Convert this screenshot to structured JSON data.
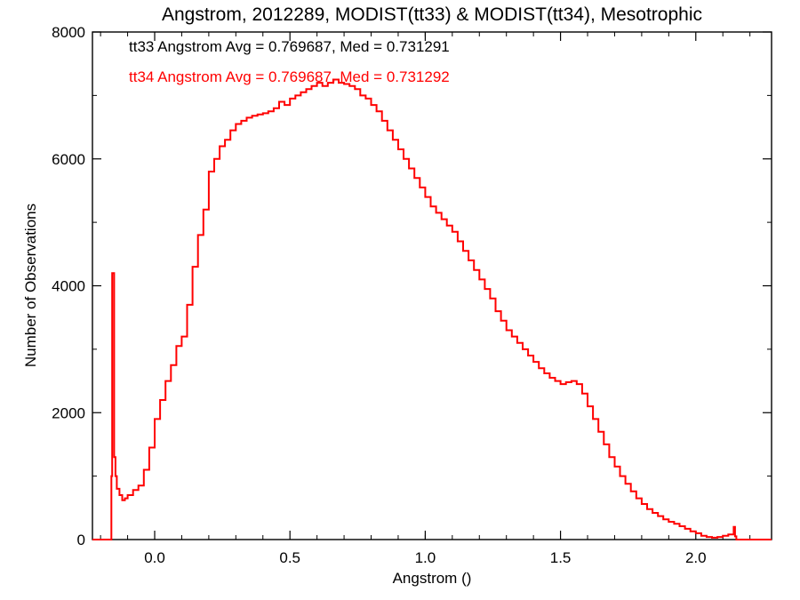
{
  "chart_data": {
    "type": "line",
    "title": "Angstrom, 2012289, MODIST(tt33) & MODIST(tt34), Mesotrophic",
    "xlabel": "Angstrom ()",
    "ylabel": "Number of Observations",
    "xlim": [
      -0.23,
      2.28
    ],
    "ylim": [
      0,
      8000
    ],
    "xticks": [
      0.0,
      0.5,
      1.0,
      1.5,
      2.0
    ],
    "xtick_labels": [
      "0.0",
      "0.5",
      "1.0",
      "1.5",
      "2.0"
    ],
    "yticks": [
      0,
      2000,
      4000,
      6000,
      8000
    ],
    "ytick_labels": [
      "0",
      "2000",
      "4000",
      "6000",
      "8000"
    ],
    "grid": false,
    "step": true,
    "annotations": [
      {
        "text": "tt33 Angstrom Avg = 0.769687, Med = 0.731291",
        "color": "#000000"
      },
      {
        "text": "tt34 Angstrom Avg = 0.769687, Med = 0.731292",
        "color": "#ff0000"
      }
    ],
    "series": [
      {
        "color": "#ff0000",
        "x": [
          -0.23,
          -0.16,
          -0.157,
          -0.15,
          -0.145,
          -0.14,
          -0.13,
          -0.12,
          -0.11,
          -0.1,
          -0.08,
          -0.06,
          -0.04,
          -0.02,
          0.0,
          0.02,
          0.04,
          0.06,
          0.08,
          0.1,
          0.12,
          0.14,
          0.16,
          0.18,
          0.2,
          0.22,
          0.24,
          0.26,
          0.28,
          0.3,
          0.32,
          0.34,
          0.36,
          0.38,
          0.4,
          0.42,
          0.44,
          0.46,
          0.48,
          0.5,
          0.52,
          0.54,
          0.56,
          0.58,
          0.6,
          0.62,
          0.64,
          0.66,
          0.68,
          0.7,
          0.72,
          0.74,
          0.76,
          0.78,
          0.8,
          0.82,
          0.84,
          0.86,
          0.88,
          0.9,
          0.92,
          0.94,
          0.96,
          0.98,
          1.0,
          1.02,
          1.04,
          1.06,
          1.08,
          1.1,
          1.12,
          1.14,
          1.16,
          1.18,
          1.2,
          1.22,
          1.24,
          1.26,
          1.28,
          1.3,
          1.32,
          1.34,
          1.36,
          1.38,
          1.4,
          1.42,
          1.44,
          1.46,
          1.48,
          1.5,
          1.52,
          1.54,
          1.56,
          1.58,
          1.6,
          1.62,
          1.64,
          1.66,
          1.68,
          1.7,
          1.72,
          1.74,
          1.76,
          1.78,
          1.8,
          1.82,
          1.84,
          1.86,
          1.88,
          1.9,
          1.92,
          1.94,
          1.96,
          1.98,
          2.0,
          2.02,
          2.04,
          2.06,
          2.08,
          2.1,
          2.12,
          2.14,
          2.145,
          2.15,
          2.28
        ],
        "y": [
          0,
          1000,
          4200,
          1300,
          1000,
          800,
          700,
          620,
          650,
          700,
          780,
          850,
          1100,
          1450,
          1900,
          2200,
          2500,
          2750,
          3050,
          3200,
          3700,
          4300,
          4800,
          5200,
          5800,
          6000,
          6200,
          6300,
          6450,
          6550,
          6600,
          6650,
          6680,
          6700,
          6720,
          6750,
          6800,
          6900,
          6850,
          6950,
          7000,
          7050,
          7100,
          7150,
          7200,
          7150,
          7200,
          7250,
          7200,
          7180,
          7150,
          7100,
          7000,
          6950,
          6850,
          6750,
          6600,
          6450,
          6300,
          6150,
          6000,
          5850,
          5700,
          5550,
          5400,
          5250,
          5150,
          5050,
          4950,
          4850,
          4700,
          4550,
          4400,
          4250,
          4100,
          3950,
          3800,
          3600,
          3450,
          3300,
          3200,
          3100,
          3000,
          2900,
          2800,
          2700,
          2620,
          2550,
          2500,
          2450,
          2480,
          2500,
          2450,
          2300,
          2100,
          1900,
          1700,
          1500,
          1300,
          1150,
          1000,
          880,
          760,
          650,
          560,
          480,
          420,
          370,
          320,
          280,
          250,
          210,
          170,
          130,
          100,
          60,
          40,
          30,
          40,
          60,
          80,
          200,
          50,
          0,
          0
        ]
      }
    ]
  }
}
